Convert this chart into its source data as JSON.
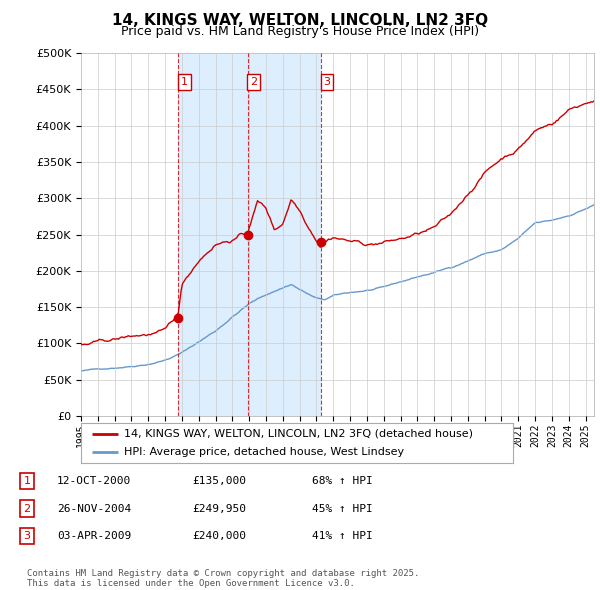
{
  "title": "14, KINGS WAY, WELTON, LINCOLN, LN2 3FQ",
  "subtitle": "Price paid vs. HM Land Registry's House Price Index (HPI)",
  "ylim": [
    0,
    500000
  ],
  "xlim_start": 1995.0,
  "xlim_end": 2025.5,
  "sale_dates": [
    2000.79,
    2004.91,
    2009.26
  ],
  "sale_labels": [
    "1",
    "2",
    "3"
  ],
  "sale_prices": [
    135000,
    249950,
    240000
  ],
  "legend_line1": "14, KINGS WAY, WELTON, LINCOLN, LN2 3FQ (detached house)",
  "legend_line2": "HPI: Average price, detached house, West Lindsey",
  "table_rows": [
    [
      "1",
      "12-OCT-2000",
      "£135,000",
      "68% ↑ HPI"
    ],
    [
      "2",
      "26-NOV-2004",
      "£249,950",
      "45% ↑ HPI"
    ],
    [
      "3",
      "03-APR-2009",
      "£240,000",
      "41% ↑ HPI"
    ]
  ],
  "footnote": "Contains HM Land Registry data © Crown copyright and database right 2025.\nThis data is licensed under the Open Government Licence v3.0.",
  "red_color": "#cc0000",
  "blue_color": "#6699cc",
  "fill_color": "#ddeeff",
  "background_color": "#ffffff",
  "grid_color": "#cccccc"
}
